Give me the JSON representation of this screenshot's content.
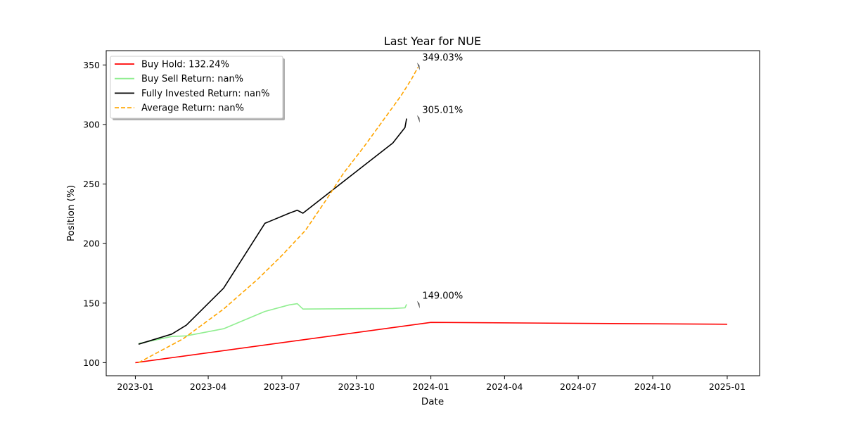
{
  "chart_data": {
    "type": "line",
    "title": "Last Year for NUE",
    "xlabel": "Date",
    "ylabel": "Position (%)",
    "xlim": [
      "2022-11-26",
      "2025-02-10"
    ],
    "ylim": [
      89,
      362
    ],
    "x_ticks": [
      "2023-01",
      "2023-04",
      "2023-07",
      "2023-10",
      "2024-01",
      "2024-04",
      "2024-07",
      "2024-10",
      "2025-01"
    ],
    "y_ticks": [
      100,
      150,
      200,
      250,
      300,
      350
    ],
    "grid": false,
    "legend_position": "upper-left",
    "series": [
      {
        "name": "Buy Hold: 132.24%",
        "color": "#ff0000",
        "style": "solid",
        "points": [
          {
            "x": "2023-01-01",
            "y": 100
          },
          {
            "x": "2024-01-01",
            "y": 133.8
          },
          {
            "x": "2025-01-01",
            "y": 132.24
          }
        ]
      },
      {
        "name": "Buy Sell Return: nan%",
        "color": "#90ee90",
        "style": "solid",
        "points": [
          {
            "x": "2023-01-05",
            "y": 116
          },
          {
            "x": "2023-02-15",
            "y": 122
          },
          {
            "x": "2023-03-05",
            "y": 122.5
          },
          {
            "x": "2023-04-20",
            "y": 128.5
          },
          {
            "x": "2023-06-10",
            "y": 143
          },
          {
            "x": "2023-07-10",
            "y": 148.5
          },
          {
            "x": "2023-07-20",
            "y": 149.5
          },
          {
            "x": "2023-07-27",
            "y": 145
          },
          {
            "x": "2023-11-15",
            "y": 145.5
          },
          {
            "x": "2023-11-30",
            "y": 146
          },
          {
            "x": "2023-12-02",
            "y": 149
          }
        ]
      },
      {
        "name": "Fully Invested Return: nan%",
        "color": "#000000",
        "style": "solid",
        "points": [
          {
            "x": "2023-01-05",
            "y": 115.5
          },
          {
            "x": "2023-02-15",
            "y": 124
          },
          {
            "x": "2023-03-05",
            "y": 131.5
          },
          {
            "x": "2023-04-20",
            "y": 162.5
          },
          {
            "x": "2023-06-10",
            "y": 217
          },
          {
            "x": "2023-07-10",
            "y": 225.5
          },
          {
            "x": "2023-07-20",
            "y": 228
          },
          {
            "x": "2023-07-27",
            "y": 225.5
          },
          {
            "x": "2023-11-15",
            "y": 284.5
          },
          {
            "x": "2023-11-30",
            "y": 297.5
          },
          {
            "x": "2023-12-02",
            "y": 305
          }
        ]
      },
      {
        "name": "Average Return: nan%",
        "color": "#ffa500",
        "style": "dashed",
        "points": [
          {
            "x": "2023-01-05",
            "y": 100
          },
          {
            "x": "2023-03-01",
            "y": 120
          },
          {
            "x": "2023-04-20",
            "y": 145
          },
          {
            "x": "2023-06-01",
            "y": 170
          },
          {
            "x": "2023-07-01",
            "y": 190
          },
          {
            "x": "2023-07-30",
            "y": 211
          },
          {
            "x": "2023-08-25",
            "y": 237
          },
          {
            "x": "2023-09-15",
            "y": 259
          },
          {
            "x": "2023-10-10",
            "y": 281
          },
          {
            "x": "2023-11-10",
            "y": 310
          },
          {
            "x": "2023-11-25",
            "y": 324
          },
          {
            "x": "2023-12-08",
            "y": 338
          },
          {
            "x": "2023-12-16",
            "y": 348
          }
        ]
      }
    ],
    "annotations": [
      {
        "text": "349.03%",
        "x": "2023-12-17",
        "y": 349.03
      },
      {
        "text": "305.01%",
        "x": "2023-12-17",
        "y": 305.01
      },
      {
        "text": "149.00%",
        "x": "2023-12-17",
        "y": 149.0
      }
    ]
  }
}
